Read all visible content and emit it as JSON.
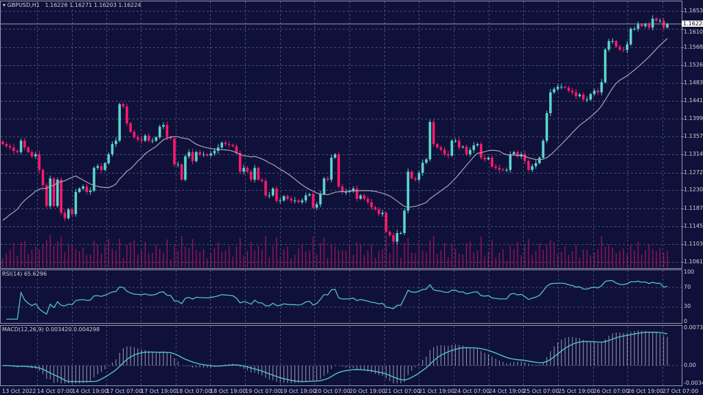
{
  "header": {
    "symbol_label": "GBPUSD,H1",
    "ohlc": "1.16226 1.16271 1.16203 1.16224"
  },
  "colors": {
    "background": "#10113a",
    "bull": "#5ad6cc",
    "bear": "#ff1a6a",
    "moving_average": "#a8a8b4",
    "volume": "#a0145a",
    "indicator_line": "#4fc7c4",
    "grid": "#4a4e78"
  },
  "chart_data": [
    {
      "type": "candlestick",
      "symbol": "GBPUSD",
      "timeframe": "H1",
      "current_price": 1.16224,
      "current_price_label": "1.16224",
      "ylim": [
        1.1042,
        1.167
      ],
      "y_ticks": [
        "1.16530",
        "1.16105",
        "1.15680",
        "1.15260",
        "1.14835",
        "1.14415",
        "1.13990",
        "1.13570",
        "1.13145",
        "1.12720",
        "1.12300",
        "1.11875",
        "1.11455",
        "1.11030",
        "1.10610"
      ],
      "x_ticks": [
        "13 Oct 2022",
        "14 Oct 07:00",
        "14 Oct 19:00",
        "17 Oct 07:00",
        "17 Oct 19:00",
        "18 Oct 07:00",
        "18 Oct 19:00",
        "19 Oct 07:00",
        "19 Oct 19:00",
        "20 Oct 07:00",
        "20 Oct 19:00",
        "21 Oct 07:00",
        "21 Oct 19:00",
        "24 Oct 07:00",
        "24 Oct 19:00",
        "25 Oct 07:00",
        "25 Oct 19:00",
        "26 Oct 07:00",
        "26 Oct 19:00",
        "27 Oct 07:00"
      ],
      "grid": true,
      "overlays": [
        "moving average",
        "volume"
      ],
      "closes": [
        1.1339,
        1.1334,
        1.1331,
        1.1323,
        1.132,
        1.1347,
        1.1331,
        1.132,
        1.131,
        1.1315,
        1.1278,
        1.1242,
        1.1193,
        1.1258,
        1.1193,
        1.1255,
        1.1177,
        1.1164,
        1.1185,
        1.1174,
        1.1226,
        1.1234,
        1.1239,
        1.1226,
        1.1229,
        1.1283,
        1.1287,
        1.1278,
        1.1294,
        1.1315,
        1.1339,
        1.1347,
        1.1433,
        1.1428,
        1.1388,
        1.1368,
        1.1355,
        1.135,
        1.1347,
        1.1359,
        1.1347,
        1.1347,
        1.1355,
        1.138,
        1.1384,
        1.1355,
        1.1352,
        1.1291,
        1.1291,
        1.1255,
        1.131,
        1.132,
        1.1299,
        1.132,
        1.1315,
        1.1315,
        1.1312,
        1.1317,
        1.1323,
        1.1331,
        1.1342,
        1.1339,
        1.1337,
        1.1334,
        1.1318,
        1.1274,
        1.1283,
        1.1274,
        1.1255,
        1.1283,
        1.1255,
        1.1252,
        1.1218,
        1.1218,
        1.1234,
        1.1205,
        1.1206,
        1.1216,
        1.121,
        1.1206,
        1.1206,
        1.1202,
        1.1206,
        1.1218,
        1.1221,
        1.1189,
        1.1197,
        1.1221,
        1.1258,
        1.1255,
        1.1307,
        1.1315,
        1.1239,
        1.1226,
        1.1226,
        1.1229,
        1.1234,
        1.121,
        1.1218,
        1.121,
        1.1202,
        1.119,
        1.1185,
        1.1174,
        1.1177,
        1.1132,
        1.1124,
        1.1109,
        1.1129,
        1.1129,
        1.1182,
        1.1274,
        1.1258,
        1.1255,
        1.1271,
        1.1295,
        1.1303,
        1.1391,
        1.1339,
        1.1331,
        1.1326,
        1.1315,
        1.1312,
        1.1347,
        1.1347,
        1.1331,
        1.1333,
        1.1315,
        1.1325,
        1.1336,
        1.1339,
        1.1307,
        1.1303,
        1.1307,
        1.1286,
        1.1283,
        1.1279,
        1.1278,
        1.1278,
        1.1315,
        1.132,
        1.131,
        1.1315,
        1.1299,
        1.1278,
        1.1287,
        1.1294,
        1.1307,
        1.1347,
        1.1412,
        1.1461,
        1.1469,
        1.1474,
        1.1474,
        1.1472,
        1.1465,
        1.1461,
        1.1452,
        1.1456,
        1.1444,
        1.1444,
        1.1457,
        1.1465,
        1.1461,
        1.1485,
        1.1562,
        1.1582,
        1.1582,
        1.1569,
        1.1562,
        1.1561,
        1.1574,
        1.1611,
        1.1611,
        1.1621,
        1.1617,
        1.1621,
        1.1614,
        1.1635,
        1.163,
        1.163,
        1.1614,
        1.16224
      ]
    },
    {
      "type": "line",
      "title": "RSI(14) 65.6296",
      "ylim": [
        0,
        100
      ],
      "y_ticks": [
        "100",
        "70",
        "30",
        "0"
      ],
      "levels": [
        70,
        30
      ]
    },
    {
      "type": "bar+line",
      "title": "MACD(12,26,9) 0.003420 0.004298",
      "ylim": [
        -0.003428,
        0.007313
      ],
      "y_ticks": [
        "0.007313",
        "0.00",
        "-0.003428"
      ]
    }
  ]
}
